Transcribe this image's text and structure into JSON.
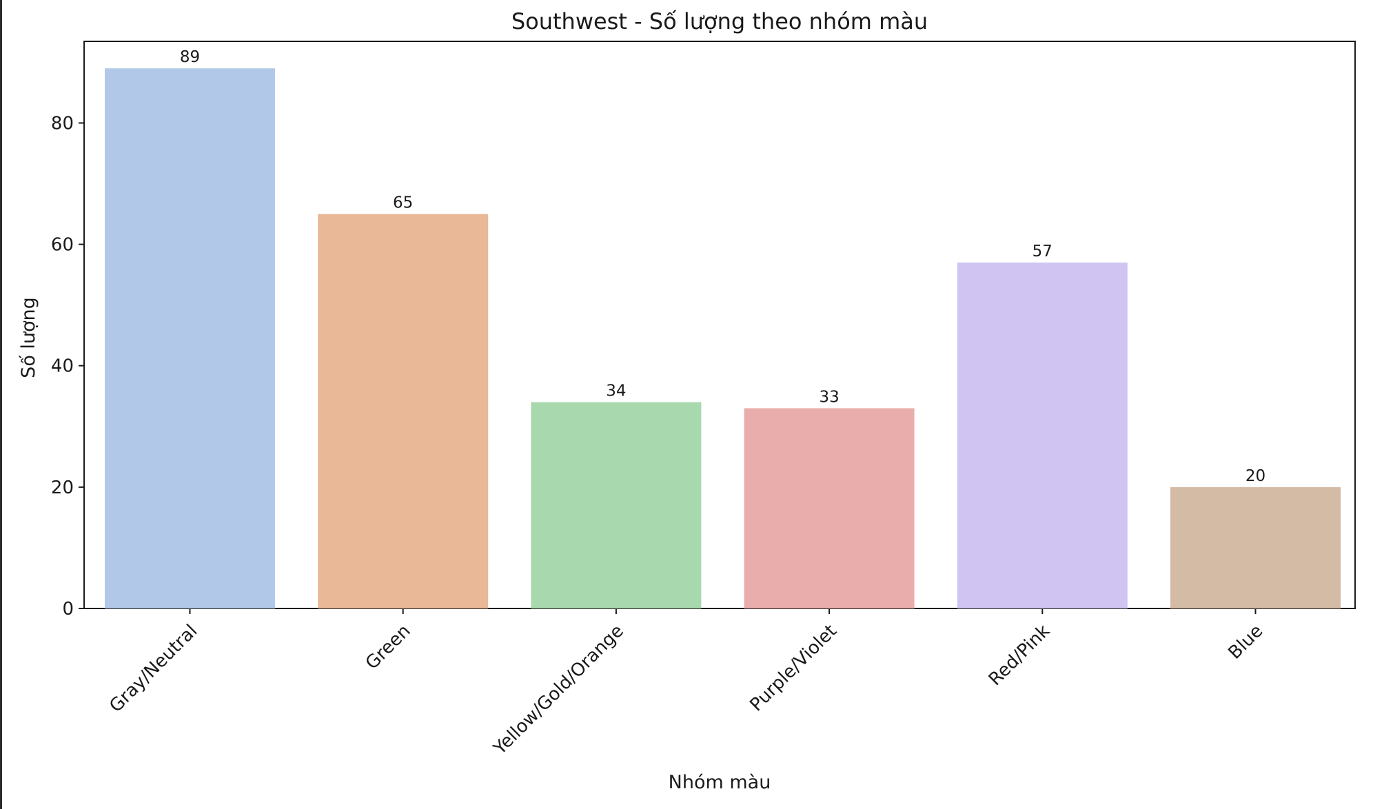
{
  "chart_data": {
    "type": "bar",
    "title": "Southwest - Số lượng theo nhóm màu",
    "xlabel": "Nhóm màu",
    "ylabel": "Số lượng",
    "categories": [
      "Gray/Neutral",
      "Green",
      "Yellow/Gold/Orange",
      "Purple/Violet",
      "Red/Pink",
      "Blue"
    ],
    "values": [
      89,
      65,
      34,
      33,
      57,
      20
    ],
    "data_labels": [
      "89",
      "65",
      "34",
      "33",
      "57",
      "20"
    ],
    "colors": [
      "#b1c8e8",
      "#e8b897",
      "#a8d8ad",
      "#e9aeab",
      "#d0c4f3",
      "#d4bba6"
    ],
    "yticks": [
      0,
      20,
      40,
      60,
      80
    ],
    "ytick_labels": [
      "0",
      "20",
      "40",
      "60",
      "80"
    ],
    "ylim": [
      0,
      93.45
    ],
    "grid": false,
    "legend": "none",
    "axis_color": "#1a1a1a"
  }
}
